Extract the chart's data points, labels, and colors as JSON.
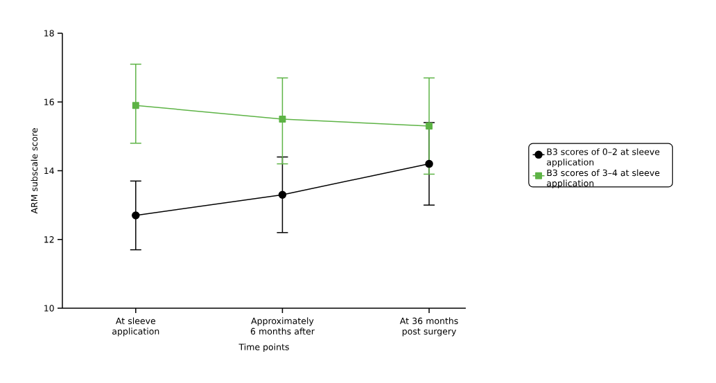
{
  "chart_data": {
    "type": "line",
    "xlabel": "Time points",
    "ylabel": "ARM subscale score",
    "categories": [
      "At sleeve application",
      "Approximately 6 months after",
      "At 36 months post surgery"
    ],
    "series": [
      {
        "name": "B3 scores of 0–2 at sleeve application",
        "color": "#000000",
        "marker": "circle",
        "values": [
          12.7,
          13.3,
          14.2
        ],
        "errors": [
          [
            11.7,
            13.7
          ],
          [
            12.2,
            14.4
          ],
          [
            13.0,
            15.4
          ]
        ]
      },
      {
        "name": "B3 scores of 3–4 at sleeve application",
        "color": "#5db345",
        "marker": "square",
        "values": [
          15.9,
          15.5,
          15.3
        ],
        "errors": [
          [
            14.8,
            17.1
          ],
          [
            14.2,
            16.7
          ],
          [
            13.9,
            16.7
          ]
        ]
      }
    ],
    "ylim": [
      10,
      18
    ],
    "yticks": [
      10,
      12,
      14,
      16,
      18
    ],
    "grid": false,
    "legend": "right",
    "line_style": "solid"
  }
}
